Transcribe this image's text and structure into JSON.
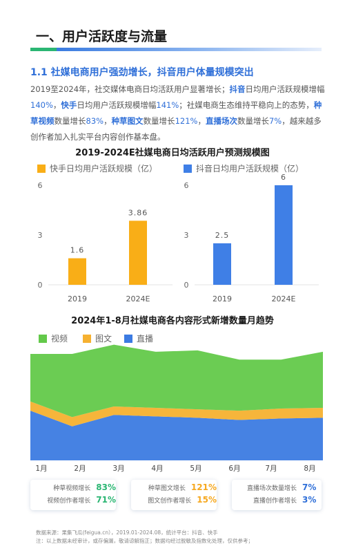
{
  "page_title": "一、用户活跃度与流量",
  "section": {
    "heading": "1.1 社媒电商用户强劲增长，抖音用户体量规模突出",
    "intro": {
      "p1": "2019至2024年，社交媒体电商日均活跃用户显著增长；",
      "douyin": "抖音",
      "p2": "日均用户活跃规模增幅",
      "douyin_growth": "140%",
      "p3": "，",
      "kuaishou": "快手",
      "p4": "日均用户活跃规模增幅",
      "kuaishou_growth": "141%",
      "p5": "；社媒电商生态维持平稳向上的态势，",
      "grass_video": "种草视频",
      "p6": "数量增长",
      "grass_video_growth": "83%",
      "p7": "，",
      "grass_img": "种草图文",
      "p8": "数量增长",
      "grass_img_growth": "121%",
      "p9": "，",
      "live": "直播场次",
      "p10": "数量增长",
      "live_growth": "7%",
      "p11": "，越来越多创作者加入扎实平台内容创作基本盘。"
    }
  },
  "colors": {
    "kuaishou": "#f9ae17",
    "douyin": "#3f7fe6",
    "video": "#63c94a",
    "image": "#f6b130",
    "live": "#3c7be2",
    "accent": "#2f6fd8"
  },
  "chart_data": [
    {
      "type": "bar",
      "title": "2019-2024E社媒电商日均活跃用户预测规模图",
      "categories": [
        "2019",
        "2024E"
      ],
      "series": [
        {
          "name": "快手日均用户活跃规模（亿）",
          "values": [
            1.6,
            3.86
          ]
        }
      ],
      "data_labels": [
        "1.6",
        "3.86"
      ],
      "yticks": [
        "6",
        "3",
        "0"
      ],
      "ylim": [
        0,
        6
      ]
    },
    {
      "type": "bar",
      "categories": [
        "2019",
        "2024E"
      ],
      "series": [
        {
          "name": "抖音日均用户活跃规模（亿）",
          "values": [
            2.5,
            6
          ]
        }
      ],
      "data_labels": [
        "2.5",
        "6"
      ],
      "yticks": [
        "6",
        "3",
        "0"
      ],
      "ylim": [
        0,
        6
      ]
    },
    {
      "type": "area",
      "title": "2024年1-8月社媒电商各内容形式新增数量月趋势",
      "categories": [
        "1月",
        "2月",
        "3月",
        "4月",
        "5月",
        "6月",
        "7月",
        "8月"
      ],
      "stacked": true,
      "series": [
        {
          "name": "直播",
          "values": [
            70,
            48,
            64,
            62,
            60,
            57,
            59,
            60
          ]
        },
        {
          "name": "图文",
          "values": [
            13,
            13,
            12,
            12,
            12,
            13,
            14,
            14
          ]
        },
        {
          "name": "视频",
          "values": [
            67,
            89,
            87,
            79,
            83,
            72,
            69,
            79
          ]
        }
      ],
      "legend": "top-left"
    }
  ],
  "cards": [
    {
      "l1": "种草视频增长",
      "v1": "83%",
      "l2": "视频创作者增长",
      "v2": "71%"
    },
    {
      "l1": "种草图文增长",
      "v1": "121%",
      "l2": "图文创作者增长",
      "v2": "15%"
    },
    {
      "l1": "直播场次数量增长",
      "v1": "7%",
      "l2": "直播创作者增长",
      "v2": "3%"
    }
  ],
  "footer": {
    "line1": "数据来源：果集飞瓜(feigua.cn），2019.01-2024.08，统计平台：抖音、快手",
    "line2": "注：以上数据未经审计，或存偏漏，敬请谅解指正；数据均经过脱敏及指数化处理，仅供参考；"
  }
}
